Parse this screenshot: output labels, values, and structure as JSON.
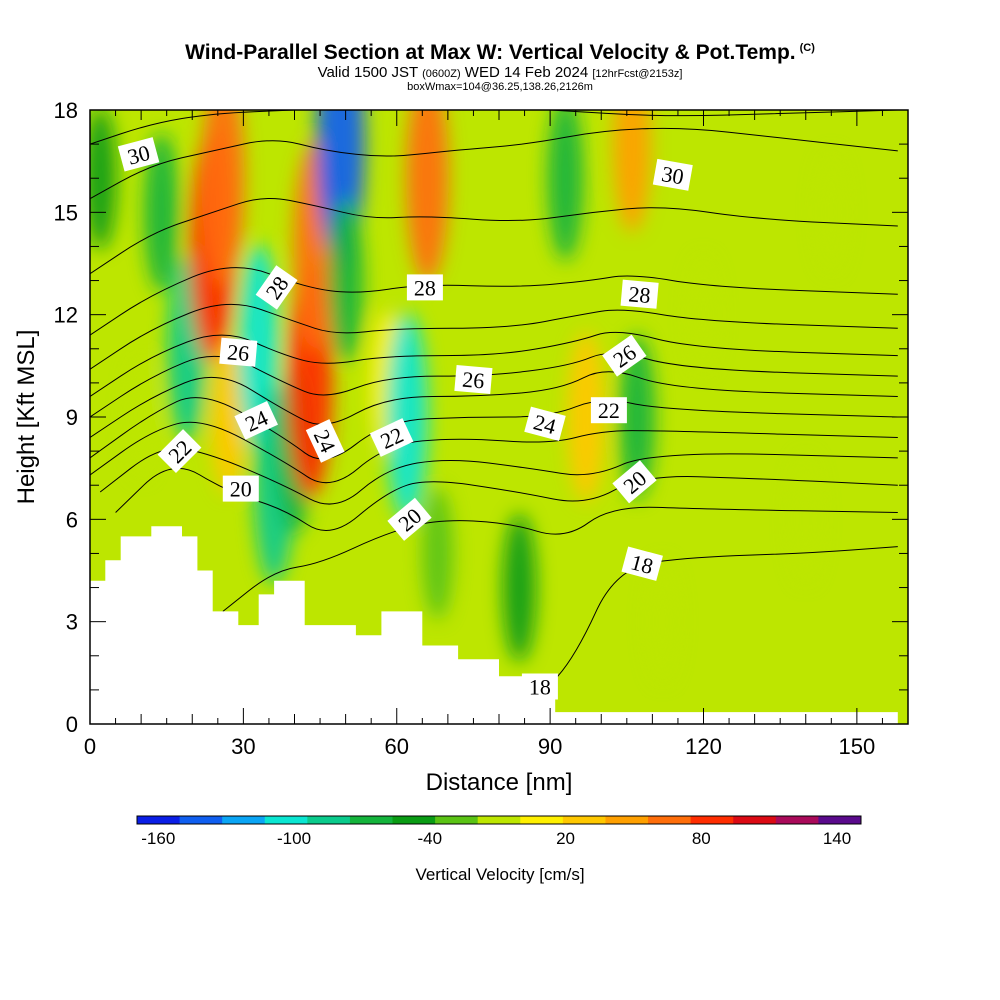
{
  "header": {
    "title": "Wind-Parallel Section at Max W: Vertical Velocity & Pot.Temp.",
    "copyright": "(C)",
    "subtitle_a": "Valid 1500 JST",
    "subtitle_b": "(0600Z)",
    "subtitle_c": "WED 14 Feb 2024",
    "subtitle_d": "[12hrFcst@2153z]",
    "subtitle2": "boxWmax=104@36.25,138.26,2126m"
  },
  "chart_data": {
    "type": "heatmap",
    "xlabel": "Distance [nm]",
    "ylabel": "Height [Kft MSL]",
    "xlim": [
      0,
      160
    ],
    "ylim": [
      0,
      18
    ],
    "x_ticks": [
      "0",
      "30",
      "60",
      "90",
      "120",
      "150"
    ],
    "y_ticks": [
      "0",
      "3",
      "6",
      "9",
      "12",
      "15",
      "18"
    ],
    "x_tick_values": [
      0,
      30,
      60,
      90,
      120,
      150
    ],
    "y_tick_values": [
      0,
      3,
      6,
      9,
      12,
      15,
      18
    ],
    "colorbar": {
      "label": "Vertical Velocity [cm/s]",
      "tick_labels": [
        "-160",
        "-100",
        "-40",
        "20",
        "80",
        "140"
      ],
      "tick_values": [
        -160,
        -100,
        -40,
        20,
        80,
        140
      ],
      "levels": [
        -160,
        -140,
        -120,
        -100,
        -80,
        -60,
        -40,
        -20,
        0,
        20,
        40,
        60,
        80,
        100,
        120,
        140,
        160
      ],
      "colors": [
        "#0a1ee6",
        "#0f5ef0",
        "#0aa5f5",
        "#0ae6d2",
        "#0acb8c",
        "#14b43c",
        "#0a9c14",
        "#5ac314",
        "#bde600",
        "#fff000",
        "#ffc800",
        "#ffa000",
        "#ff6e0a",
        "#ff2d00",
        "#dc0a14",
        "#aa0a5a",
        "#5a0a8c"
      ]
    },
    "w_field": [
      {
        "x": 2,
        "y": 16,
        "w": -30
      },
      {
        "x": 10,
        "y": 9,
        "w": 10
      },
      {
        "x": 14,
        "y": 15,
        "w": -45
      },
      {
        "x": 19,
        "y": 11,
        "w": -70
      },
      {
        "x": 24,
        "y": 14,
        "w": 110
      },
      {
        "x": 26,
        "y": 16,
        "w": 95
      },
      {
        "x": 27,
        "y": 9,
        "w": 40
      },
      {
        "x": 33,
        "y": 11,
        "w": -90
      },
      {
        "x": 36,
        "y": 7,
        "w": -80
      },
      {
        "x": 40,
        "y": 8,
        "w": -50
      },
      {
        "x": 43,
        "y": 10,
        "w": 110
      },
      {
        "x": 44,
        "y": 14,
        "w": 90
      },
      {
        "x": 49,
        "y": 17,
        "w": -130
      },
      {
        "x": 50,
        "y": 13,
        "w": -50
      },
      {
        "x": 58,
        "y": 10,
        "w": 30
      },
      {
        "x": 62,
        "y": 9,
        "w": -90
      },
      {
        "x": 66,
        "y": 16,
        "w": 90
      },
      {
        "x": 68,
        "y": 5,
        "w": -20
      },
      {
        "x": 84,
        "y": 4,
        "w": -35
      },
      {
        "x": 93,
        "y": 16,
        "w": -50
      },
      {
        "x": 97,
        "y": 9,
        "w": 55
      },
      {
        "x": 106,
        "y": 17,
        "w": 60
      },
      {
        "x": 107,
        "y": 9,
        "w": -50
      },
      {
        "x": 112,
        "y": 3,
        "w": 10
      },
      {
        "x": 120,
        "y": 12,
        "w": 5
      },
      {
        "x": 140,
        "y": 6,
        "w": 15
      },
      {
        "x": 145,
        "y": 15,
        "w": 8
      }
    ],
    "terrain_profile": [
      {
        "x": 0,
        "y": 4.2
      },
      {
        "x": 3,
        "y": 4.8
      },
      {
        "x": 6,
        "y": 5.5
      },
      {
        "x": 12,
        "y": 5.8
      },
      {
        "x": 18,
        "y": 5.5
      },
      {
        "x": 21,
        "y": 4.5
      },
      {
        "x": 24,
        "y": 3.3
      },
      {
        "x": 29,
        "y": 2.9
      },
      {
        "x": 33,
        "y": 3.8
      },
      {
        "x": 36,
        "y": 4.2
      },
      {
        "x": 42,
        "y": 2.9
      },
      {
        "x": 52,
        "y": 2.6
      },
      {
        "x": 57,
        "y": 3.3
      },
      {
        "x": 65,
        "y": 2.3
      },
      {
        "x": 72,
        "y": 1.9
      },
      {
        "x": 80,
        "y": 1.4
      },
      {
        "x": 85,
        "y": 1.0
      },
      {
        "x": 91,
        "y": 0.35
      },
      {
        "x": 158,
        "y": 0.35
      }
    ],
    "theta_contours": [
      {
        "level": 18,
        "pts": [
          [
            76,
            0.5
          ],
          [
            88,
            0.8
          ],
          [
            95,
            2.0
          ],
          [
            103,
            4.6
          ],
          [
            118,
            4.9
          ],
          [
            140,
            5.0
          ],
          [
            158,
            5.2
          ]
        ]
      },
      {
        "level": 19,
        "pts": [
          [
            26,
            3.3
          ],
          [
            36,
            4.5
          ],
          [
            45,
            4.7
          ],
          [
            58,
            5.6
          ],
          [
            68,
            6.0
          ],
          [
            82,
            5.9
          ],
          [
            93,
            5.4
          ],
          [
            102,
            6.4
          ],
          [
            120,
            6.3
          ],
          [
            158,
            6.2
          ]
        ]
      },
      {
        "level": 20,
        "pts": [
          [
            5,
            6.2
          ],
          [
            16,
            7.8
          ],
          [
            27,
            6.8
          ],
          [
            38,
            6.3
          ],
          [
            47,
            5.4
          ],
          [
            58,
            6.8
          ],
          [
            66,
            7.2
          ],
          [
            84,
            6.8
          ],
          [
            97,
            6.4
          ],
          [
            108,
            7.3
          ],
          [
            130,
            7.2
          ],
          [
            158,
            7.0
          ]
        ]
      },
      {
        "level": 21,
        "pts": [
          [
            2,
            6.8
          ],
          [
            14,
            8.2
          ],
          [
            24,
            7.9
          ],
          [
            38,
            7.0
          ],
          [
            48,
            6.2
          ],
          [
            58,
            7.5
          ],
          [
            70,
            7.8
          ],
          [
            86,
            7.5
          ],
          [
            98,
            7.2
          ],
          [
            110,
            8.0
          ],
          [
            158,
            7.8
          ]
        ]
      },
      {
        "level": 22,
        "pts": [
          [
            0,
            7.3
          ],
          [
            12,
            8.6
          ],
          [
            22,
            9.0
          ],
          [
            38,
            7.7
          ],
          [
            47,
            6.8
          ],
          [
            58,
            8.2
          ],
          [
            72,
            8.4
          ],
          [
            90,
            8.2
          ],
          [
            100,
            8.6
          ],
          [
            112,
            8.6
          ],
          [
            158,
            8.4
          ]
        ]
      },
      {
        "level": 23,
        "pts": [
          [
            0,
            7.8
          ],
          [
            12,
            9.1
          ],
          [
            22,
            9.8
          ],
          [
            38,
            8.4
          ],
          [
            46,
            7.5
          ],
          [
            58,
            8.9
          ],
          [
            74,
            9.0
          ],
          [
            90,
            9.0
          ],
          [
            100,
            9.6
          ],
          [
            112,
            9.2
          ],
          [
            158,
            9.0
          ]
        ]
      },
      {
        "level": 24,
        "pts": [
          [
            0,
            8.4
          ],
          [
            12,
            9.6
          ],
          [
            25,
            10.4
          ],
          [
            38,
            9.2
          ],
          [
            46,
            8.6
          ],
          [
            58,
            9.6
          ],
          [
            76,
            9.6
          ],
          [
            92,
            9.8
          ],
          [
            101,
            10.5
          ],
          [
            114,
            9.8
          ],
          [
            158,
            9.6
          ]
        ]
      },
      {
        "level": 25,
        "pts": [
          [
            0,
            9.0
          ],
          [
            12,
            10.2
          ],
          [
            25,
            11.0
          ],
          [
            38,
            10.0
          ],
          [
            46,
            9.5
          ],
          [
            58,
            10.2
          ],
          [
            78,
            10.2
          ],
          [
            94,
            10.5
          ],
          [
            102,
            11.0
          ],
          [
            116,
            10.4
          ],
          [
            158,
            10.2
          ]
        ]
      },
      {
        "level": 26,
        "pts": [
          [
            0,
            9.6
          ],
          [
            12,
            10.8
          ],
          [
            26,
            11.6
          ],
          [
            38,
            10.8
          ],
          [
            46,
            10.5
          ],
          [
            58,
            10.8
          ],
          [
            80,
            10.8
          ],
          [
            95,
            11.2
          ],
          [
            103,
            11.6
          ],
          [
            118,
            11.0
          ],
          [
            158,
            10.8
          ]
        ]
      },
      {
        "level": 27,
        "pts": [
          [
            0,
            10.4
          ],
          [
            12,
            11.6
          ],
          [
            27,
            12.5
          ],
          [
            40,
            11.8
          ],
          [
            48,
            11.4
          ],
          [
            60,
            11.6
          ],
          [
            82,
            11.6
          ],
          [
            96,
            12.0
          ],
          [
            104,
            12.2
          ],
          [
            120,
            11.8
          ],
          [
            158,
            11.6
          ]
        ]
      },
      {
        "level": 28,
        "pts": [
          [
            0,
            11.4
          ],
          [
            12,
            12.6
          ],
          [
            28,
            13.6
          ],
          [
            42,
            12.8
          ],
          [
            52,
            12.6
          ],
          [
            65,
            12.9
          ],
          [
            84,
            12.8
          ],
          [
            98,
            13.0
          ],
          [
            106,
            13.2
          ],
          [
            122,
            12.8
          ],
          [
            158,
            12.6
          ]
        ]
      },
      {
        "level": 29,
        "pts": [
          [
            0,
            13.2
          ],
          [
            12,
            14.4
          ],
          [
            24,
            15.0
          ],
          [
            34,
            15.5
          ],
          [
            44,
            15.2
          ],
          [
            55,
            14.8
          ],
          [
            66,
            14.9
          ],
          [
            84,
            14.7
          ],
          [
            98,
            15.0
          ],
          [
            112,
            15.2
          ],
          [
            130,
            14.8
          ],
          [
            158,
            14.6
          ]
        ]
      },
      {
        "level": 30,
        "pts": [
          [
            0,
            15.4
          ],
          [
            12,
            16.4
          ],
          [
            24,
            16.8
          ],
          [
            36,
            17.2
          ],
          [
            46,
            16.8
          ],
          [
            58,
            16.6
          ],
          [
            70,
            16.8
          ],
          [
            86,
            17.0
          ],
          [
            100,
            17.4
          ],
          [
            116,
            17.5
          ],
          [
            134,
            17.2
          ],
          [
            158,
            16.8
          ]
        ]
      },
      {
        "level": 31,
        "pts": [
          [
            0,
            17.0
          ],
          [
            12,
            17.6
          ],
          [
            24,
            17.9
          ],
          [
            40,
            18.0
          ]
        ]
      },
      {
        "level": 31,
        "pts": [
          [
            90,
            18.0
          ],
          [
            112,
            17.8
          ],
          [
            136,
            17.9
          ],
          [
            158,
            18.0
          ]
        ]
      }
    ],
    "contour_labels": [
      {
        "text": "30",
        "x": 9.5,
        "y": 16.7,
        "angle": 15
      },
      {
        "text": "28",
        "x": 36.5,
        "y": 12.8,
        "angle": 55
      },
      {
        "text": "26",
        "x": 29,
        "y": 10.9,
        "angle": -5
      },
      {
        "text": "24",
        "x": 32.5,
        "y": 8.9,
        "angle": 25
      },
      {
        "text": "22",
        "x": 17.5,
        "y": 8.0,
        "angle": 45
      },
      {
        "text": "20",
        "x": 29.5,
        "y": 6.9,
        "angle": 0
      },
      {
        "text": "24",
        "x": 46,
        "y": 8.3,
        "angle": -65
      },
      {
        "text": "22",
        "x": 59,
        "y": 8.4,
        "angle": 25
      },
      {
        "text": "20",
        "x": 62.5,
        "y": 6.0,
        "angle": 40
      },
      {
        "text": "28",
        "x": 65.5,
        "y": 12.8,
        "angle": 0
      },
      {
        "text": "26",
        "x": 75,
        "y": 10.1,
        "angle": -5
      },
      {
        "text": "24",
        "x": 89,
        "y": 8.8,
        "angle": -15
      },
      {
        "text": "22",
        "x": 101.5,
        "y": 9.2,
        "angle": 0
      },
      {
        "text": "26",
        "x": 104.5,
        "y": 10.8,
        "angle": 35
      },
      {
        "text": "28",
        "x": 107.5,
        "y": 12.6,
        "angle": -5
      },
      {
        "text": "30",
        "x": 114,
        "y": 16.1,
        "angle": -10
      },
      {
        "text": "20",
        "x": 106.5,
        "y": 7.1,
        "angle": 40
      },
      {
        "text": "18",
        "x": 108,
        "y": 4.7,
        "angle": -15
      },
      {
        "text": "18",
        "x": 88,
        "y": 1.1,
        "angle": 0
      }
    ]
  }
}
